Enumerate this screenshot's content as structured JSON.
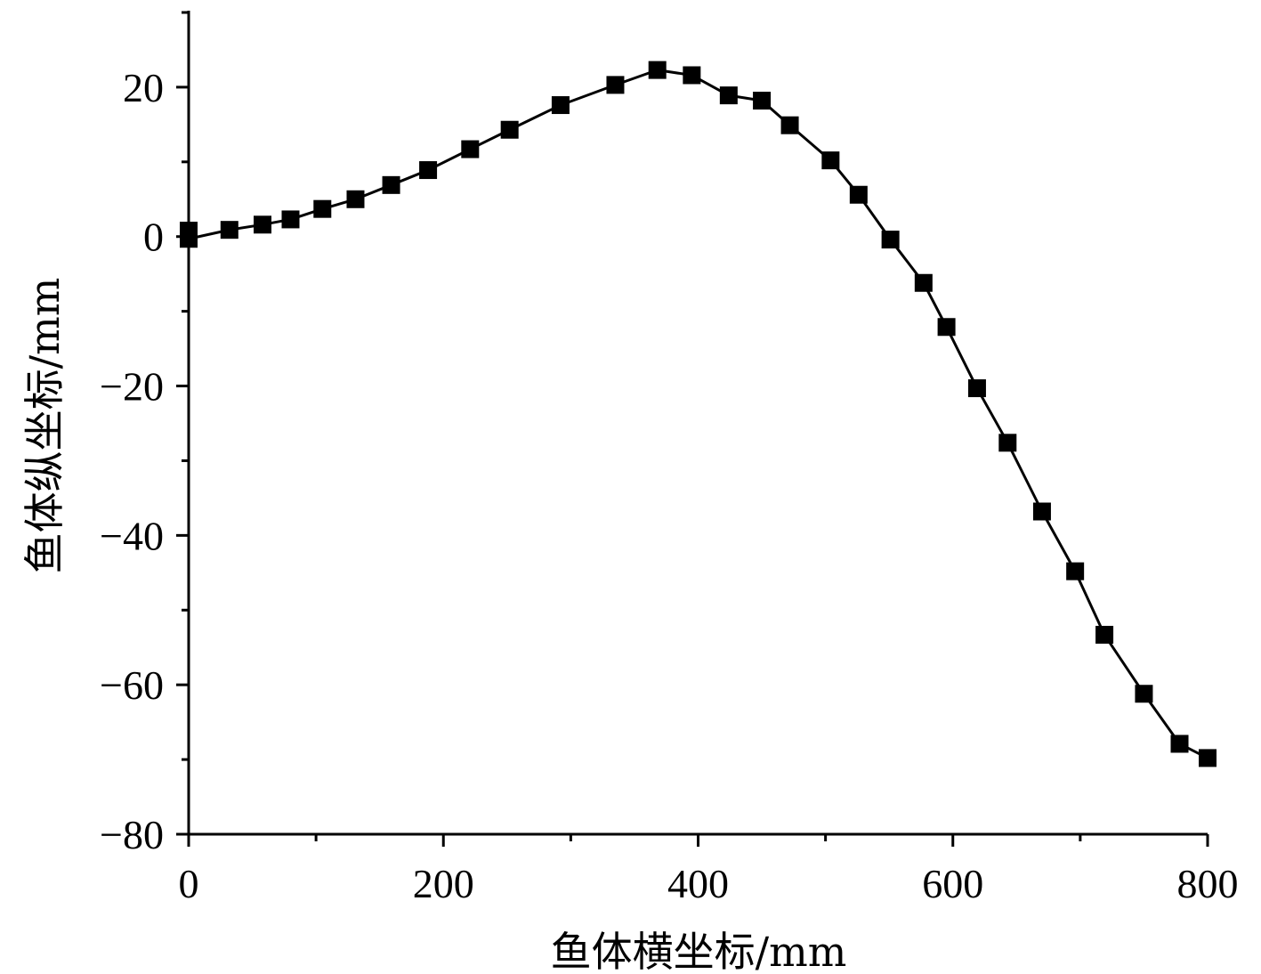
{
  "chart_data": {
    "type": "line",
    "title": "",
    "xlabel": "鱼体横坐标/mm",
    "ylabel": "鱼体纵坐标/mm",
    "xlim": [
      0,
      800
    ],
    "ylim": [
      -80,
      30
    ],
    "x_ticks": [
      0,
      200,
      400,
      600,
      800
    ],
    "x_tick_labels": [
      "0",
      "200",
      "400",
      "600",
      "800"
    ],
    "y_ticks": [
      -80,
      -60,
      -40,
      -20,
      0,
      20
    ],
    "y_tick_labels": [
      "−80",
      "−60",
      "−40",
      "−20",
      "0",
      "20"
    ],
    "grid": false,
    "legend": "none",
    "marker": "square",
    "color": "#000000",
    "series": [
      {
        "x": [
          0,
          0,
          32,
          58,
          80,
          105,
          131,
          159,
          188,
          221,
          252,
          292,
          335,
          368,
          395,
          424,
          450,
          472,
          504,
          526,
          551,
          577,
          595,
          619,
          643,
          670,
          696,
          719,
          750,
          778,
          800
        ],
        "y": [
          0.8,
          -0.3,
          0.9,
          1.6,
          2.3,
          3.7,
          5.0,
          6.9,
          8.9,
          11.7,
          14.3,
          17.6,
          20.3,
          22.3,
          21.6,
          18.9,
          18.2,
          14.9,
          10.2,
          5.6,
          -0.4,
          -6.2,
          -12.1,
          -20.3,
          -27.6,
          -36.8,
          -44.8,
          -53.3,
          -61.2,
          -67.9,
          -69.8
        ]
      }
    ]
  }
}
